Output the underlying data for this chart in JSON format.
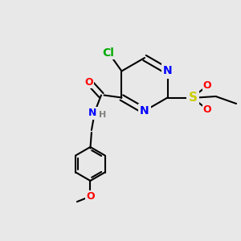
{
  "background_color": "#e8e8e8",
  "bond_color": "#000000",
  "bond_lw": 1.5,
  "atom_colors": {
    "C": "#000000",
    "N": "#0000ff",
    "O": "#ff0000",
    "S": "#cccc00",
    "Cl": "#00aa00",
    "H": "#808080"
  },
  "font_size": 9,
  "font_size_small": 8
}
